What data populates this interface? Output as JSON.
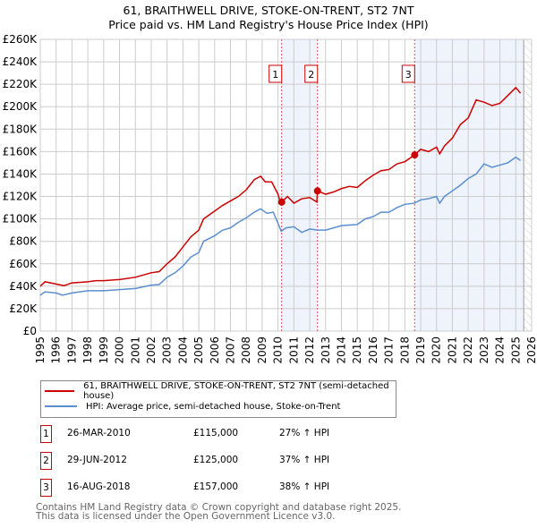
{
  "title": "61, BRAITHWELL DRIVE, STOKE-ON-TRENT, ST2 7NT",
  "subtitle": "Price paid vs. HM Land Registry's House Price Index (HPI)",
  "colors": {
    "property": "#cc0000",
    "hpi": "#5b8fd0",
    "shade": "#eef3fc",
    "grid": "#cccccc"
  },
  "chart_data": {
    "type": "line",
    "xlim": [
      1995,
      2026
    ],
    "ylim": [
      0,
      260000
    ],
    "yticks": [
      0,
      20000,
      40000,
      60000,
      80000,
      100000,
      120000,
      140000,
      160000,
      180000,
      200000,
      220000,
      240000,
      260000
    ],
    "ytick_labels": [
      "£0",
      "£20K",
      "£40K",
      "£60K",
      "£80K",
      "£100K",
      "£120K",
      "£140K",
      "£160K",
      "£180K",
      "£200K",
      "£220K",
      "£240K",
      "£260K"
    ],
    "xtick_labels": [
      "1995",
      "1996",
      "1997",
      "1998",
      "1999",
      "2000",
      "2001",
      "2002",
      "2003",
      "2004",
      "2005",
      "2006",
      "2007",
      "2008",
      "2009",
      "2010",
      "2011",
      "2012",
      "2013",
      "2014",
      "2015",
      "2016",
      "2017",
      "2018",
      "2019",
      "2020",
      "2021",
      "2022",
      "2023",
      "2024",
      "2025",
      "2026"
    ],
    "grid": true,
    "series": [
      {
        "name": "61, BRAITHWELL DRIVE, STOKE-ON-TRENT, ST2 7NT (semi-detached house)",
        "color": "#cc0000",
        "x": [
          1995,
          1995.3,
          1996,
          1996.5,
          1997,
          1998,
          1998.5,
          1999,
          2000,
          2001,
          2002,
          2002.5,
          2003,
          2003.5,
          2004,
          2004.5,
          2005,
          2005.3,
          2006,
          2006.5,
          2007,
          2007.5,
          2008,
          2008.5,
          2008.9,
          2009.2,
          2009.6,
          2010,
          2010.2,
          2010.23,
          2010.6,
          2011,
          2011.5,
          2012,
          2012.45,
          2012.49,
          2013,
          2013.5,
          2014,
          2014.5,
          2015,
          2015.5,
          2016,
          2016.5,
          2017,
          2017.5,
          2018,
          2018.62,
          2019,
          2019.5,
          2020,
          2020.2,
          2020.5,
          2021,
          2021.5,
          2022,
          2022.5,
          2023,
          2023.5,
          2024,
          2024.5,
          2025,
          2025.3
        ],
        "y": [
          40,
          44,
          42,
          40.5,
          43,
          44,
          45,
          45,
          46,
          48,
          52,
          53,
          60,
          66,
          75,
          84,
          90,
          100,
          107,
          112,
          116,
          120,
          126,
          135,
          138,
          133,
          133,
          122,
          112,
          115,
          120,
          114,
          118,
          119,
          115,
          125,
          122,
          124,
          127,
          129,
          128,
          134,
          139,
          143,
          144,
          149,
          151,
          157,
          162,
          160,
          164,
          158,
          165,
          172,
          184,
          190,
          206,
          204,
          201,
          203,
          210,
          217,
          212
        ]
      },
      {
        "name": "HPI: Average price, semi-detached house, Stoke-on-Trent",
        "color": "#5b8fd0",
        "x": [
          1995,
          1995.3,
          1996,
          1996.4,
          1997,
          1998,
          1999,
          2000,
          2001,
          2002,
          2002.5,
          2003,
          2003.5,
          2004,
          2004.5,
          2005,
          2005.3,
          2006,
          2006.5,
          2007,
          2007.5,
          2008,
          2008.5,
          2008.9,
          2009.3,
          2009.7,
          2010,
          2010.2,
          2010.5,
          2011,
          2011.5,
          2012,
          2012.5,
          2013,
          2013.5,
          2014,
          2015,
          2015.5,
          2016,
          2016.5,
          2017,
          2017.5,
          2018,
          2018.6,
          2019,
          2019.5,
          2020,
          2020.2,
          2020.5,
          2021,
          2021.5,
          2022,
          2022.5,
          2023,
          2023.5,
          2024,
          2024.5,
          2025,
          2025.3
        ],
        "y": [
          32,
          35,
          34,
          32,
          34,
          36,
          36,
          37,
          38,
          41,
          41.5,
          48,
          52,
          58,
          66,
          70,
          80,
          85,
          90,
          92,
          97,
          101,
          106,
          109,
          105,
          106,
          96,
          89,
          92,
          93,
          88,
          91,
          90,
          90,
          92,
          94,
          95,
          100,
          102,
          106,
          106,
          110,
          113,
          114,
          117,
          118,
          120,
          114,
          120,
          125,
          130,
          136,
          140,
          149,
          146,
          148,
          150,
          155,
          152
        ]
      }
    ],
    "y_unit": "thousand GBP",
    "sales": [
      {
        "label": "1",
        "x": 2010.23,
        "y": 115
      },
      {
        "label": "2",
        "x": 2012.49,
        "y": 125
      },
      {
        "label": "3",
        "x": 2018.62,
        "y": 157
      }
    ],
    "shaded_ranges": [
      [
        2010.23,
        2012.49
      ],
      [
        2018.62,
        2025.5
      ]
    ],
    "forecast_from": 2025.5
  },
  "legend": {
    "property": "61, BRAITHWELL DRIVE, STOKE-ON-TRENT, ST2 7NT (semi-detached house)",
    "hpi": "HPI: Average price, semi-detached house, Stoke-on-Trent"
  },
  "transactions": [
    {
      "num": "1",
      "date": "26-MAR-2010",
      "price": "£115,000",
      "hpi": "27% ↑ HPI"
    },
    {
      "num": "2",
      "date": "29-JUN-2012",
      "price": "£125,000",
      "hpi": "37% ↑ HPI"
    },
    {
      "num": "3",
      "date": "16-AUG-2018",
      "price": "£157,000",
      "hpi": "38% ↑ HPI"
    }
  ],
  "footer": {
    "line1": "Contains HM Land Registry data © Crown copyright and database right 2025.",
    "line2": "This data is licensed under the Open Government Licence v3.0."
  }
}
